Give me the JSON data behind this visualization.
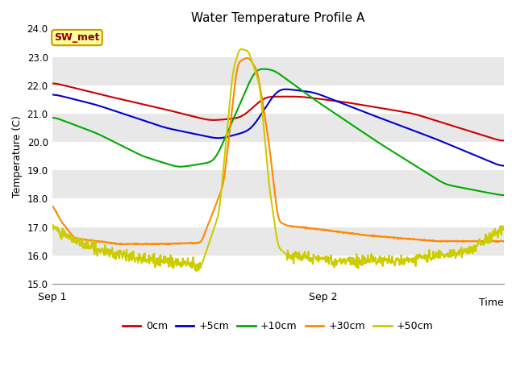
{
  "title": "Water Temperature Profile A",
  "ylabel": "Temperature (C)",
  "xlabel": "Time",
  "ylim": [
    15.0,
    24.0
  ],
  "yticks": [
    15.0,
    16.0,
    17.0,
    18.0,
    19.0,
    20.0,
    21.0,
    22.0,
    23.0,
    24.0
  ],
  "background_color": "#ffffff",
  "plot_bg_color": "#e8e8e8",
  "band_colors": [
    "#ffffff",
    "#e8e8e8"
  ],
  "annotation_box": {
    "text": "SW_met",
    "bg": "#ffff99",
    "edge": "#cc9900",
    "text_color": "#8b0000"
  },
  "series": [
    {
      "label": "0cm",
      "color": "#cc0000",
      "linewidth": 1.5
    },
    {
      "label": "+5cm",
      "color": "#0000cc",
      "linewidth": 1.5
    },
    {
      "label": "+10cm",
      "color": "#00aa00",
      "linewidth": 1.5
    },
    {
      "label": "+30cm",
      "color": "#ff8800",
      "linewidth": 1.5
    },
    {
      "label": "+50cm",
      "color": "#cccc00",
      "linewidth": 1.5
    }
  ]
}
